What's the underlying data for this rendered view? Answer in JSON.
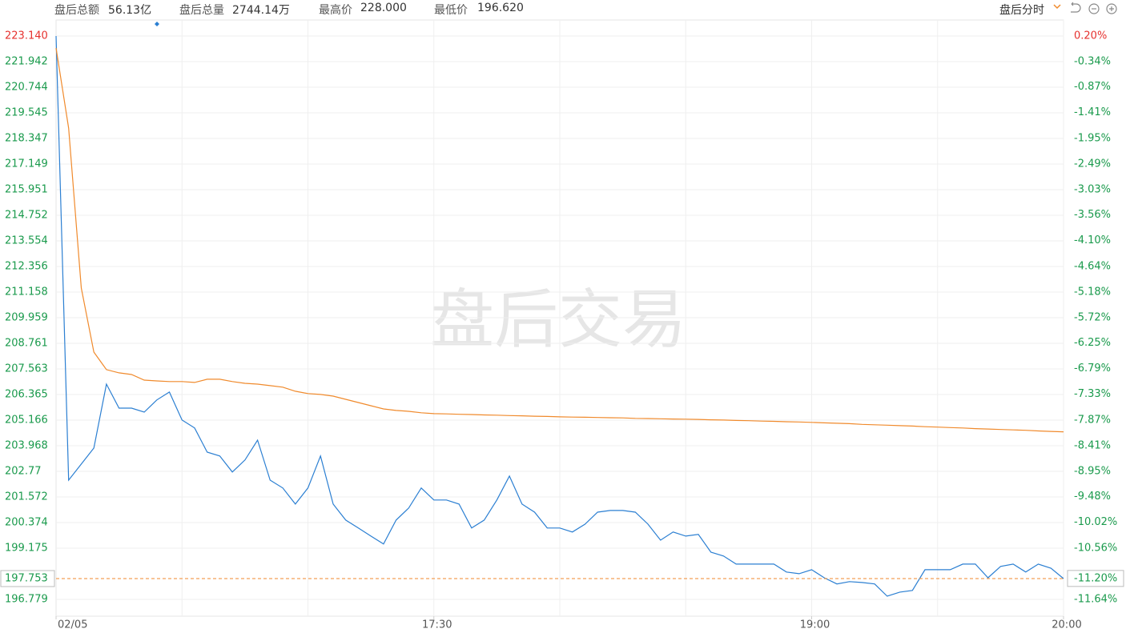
{
  "header": {
    "items": [
      {
        "label": "盘后总额",
        "value": "56.13亿"
      },
      {
        "label": "盘后总量",
        "value": "2744.14万"
      },
      {
        "label": "最高价",
        "value": "228.000"
      },
      {
        "label": "最低价",
        "value": "196.620"
      }
    ],
    "mode": "盘后分时"
  },
  "chart_data": {
    "type": "line",
    "watermark": "盘后交易",
    "xlim": [
      0,
      80
    ],
    "xticks": [
      {
        "value": 0,
        "label": "02/05"
      },
      {
        "value": 30,
        "label": "17:30"
      },
      {
        "value": 60,
        "label": "19:00"
      },
      {
        "value": 80,
        "label": "20:00"
      }
    ],
    "xgrid": [
      10,
      20,
      30,
      40,
      50,
      60,
      70,
      80
    ],
    "ylim": [
      196.779,
      223.14
    ],
    "yticks": [
      {
        "value": 223.14,
        "label": "223.140"
      },
      221.942,
      220.744,
      219.545,
      218.347,
      217.149,
      215.951,
      214.752,
      213.554,
      212.356,
      211.158,
      209.959,
      208.761,
      207.563,
      206.365,
      205.166,
      203.968,
      202.77,
      201.572,
      200.374,
      199.175,
      196.779
    ],
    "y2lim": [
      -11.64,
      0.2
    ],
    "y2ticks": [
      {
        "value": 0.2,
        "label": "0.20%"
      },
      {
        "value": -0.34,
        "label": "-0.34%"
      },
      {
        "value": -0.87,
        "label": "-0.87%"
      },
      {
        "value": -1.41,
        "label": "-1.41%"
      },
      {
        "value": -1.95,
        "label": "-1.95%"
      },
      {
        "value": -2.49,
        "label": "-2.49%"
      },
      {
        "value": -3.03,
        "label": "-3.03%"
      },
      {
        "value": -3.56,
        "label": "-3.56%"
      },
      {
        "value": -4.1,
        "label": "-4.10%"
      },
      {
        "value": -4.64,
        "label": "-4.64%"
      },
      {
        "value": -5.18,
        "label": "-5.18%"
      },
      {
        "value": -5.72,
        "label": "-5.72%"
      },
      {
        "value": -6.25,
        "label": "-6.25%"
      },
      {
        "value": -6.79,
        "label": "-6.79%"
      },
      {
        "value": -7.33,
        "label": "-7.33%"
      },
      {
        "value": -7.87,
        "label": "-7.87%"
      },
      {
        "value": -8.41,
        "label": "-8.41%"
      },
      {
        "value": -8.95,
        "label": "-8.95%"
      },
      {
        "value": -9.48,
        "label": "-9.48%"
      },
      {
        "value": -10.02,
        "label": "-10.02%"
      },
      {
        "value": -10.56,
        "label": "-10.56%"
      },
      {
        "value": -11.64,
        "label": "-11.64%"
      }
    ],
    "current_price": 197.753,
    "current_change": {
      "value": -11.2,
      "label": "-11.20%"
    },
    "grid": true,
    "up_color": "#e6312e",
    "down_color": "#1a9a4c",
    "series": [
      {
        "name": "price",
        "color": "#2b7fd2",
        "values": [
          223.14,
          202.36,
          203.11,
          203.86,
          206.85,
          205.73,
          205.73,
          205.54,
          206.11,
          206.48,
          205.17,
          204.8,
          203.67,
          203.49,
          202.74,
          203.3,
          204.23,
          202.36,
          201.99,
          201.24,
          201.99,
          203.49,
          201.24,
          200.49,
          200.12,
          199.74,
          199.37,
          200.49,
          201.05,
          201.99,
          201.43,
          201.43,
          201.24,
          200.12,
          200.49,
          201.43,
          202.55,
          201.24,
          200.86,
          200.12,
          200.12,
          199.93,
          200.3,
          200.86,
          200.94,
          200.94,
          200.86,
          200.3,
          199.55,
          199.93,
          199.74,
          199.82,
          198.99,
          198.81,
          198.43,
          198.43,
          198.43,
          198.43,
          198.06,
          197.98,
          198.17,
          197.79,
          197.5,
          197.61,
          197.57,
          197.5,
          196.93,
          197.12,
          197.2,
          198.17,
          198.17,
          198.17,
          198.43,
          198.43,
          197.79,
          198.32,
          198.43,
          198.06,
          198.43,
          198.24,
          197.753
        ]
      },
      {
        "name": "average",
        "color": "#f08a2c",
        "values": [
          222.58,
          218.83,
          211.35,
          208.35,
          207.53,
          207.38,
          207.3,
          207.04,
          207.0,
          206.97,
          206.97,
          206.93,
          207.08,
          207.08,
          206.97,
          206.89,
          206.85,
          206.78,
          206.71,
          206.52,
          206.41,
          206.37,
          206.29,
          206.14,
          205.99,
          205.84,
          205.69,
          205.62,
          205.58,
          205.51,
          205.47,
          205.46,
          205.44,
          205.43,
          205.41,
          205.4,
          205.38,
          205.37,
          205.35,
          205.34,
          205.32,
          205.31,
          205.3,
          205.29,
          205.28,
          205.27,
          205.25,
          205.24,
          205.23,
          205.22,
          205.21,
          205.2,
          205.18,
          205.17,
          205.15,
          205.14,
          205.12,
          205.11,
          205.09,
          205.08,
          205.06,
          205.04,
          205.02,
          205.0,
          204.97,
          204.95,
          204.93,
          204.91,
          204.89,
          204.86,
          204.84,
          204.82,
          204.8,
          204.77,
          204.75,
          204.73,
          204.71,
          204.69,
          204.66,
          204.64,
          204.62
        ]
      }
    ]
  }
}
